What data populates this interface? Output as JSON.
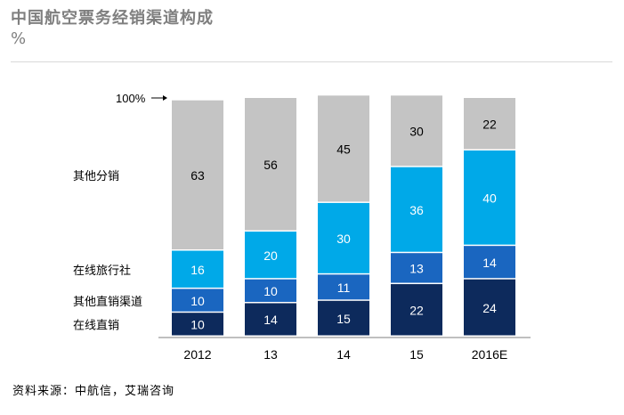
{
  "title": "中国航空票务经销渠道构成",
  "unit": "%",
  "source": "资料来源：中航信，艾瑞咨询",
  "chart_data": {
    "type": "bar",
    "stacked": true,
    "categories": [
      "2012",
      "13",
      "14",
      "15",
      "2016E"
    ],
    "series": [
      {
        "name": "在线直销",
        "color": "#0d2a5c",
        "values": [
          10,
          14,
          15,
          22,
          24
        ]
      },
      {
        "name": "其他直销渠道",
        "color": "#1a66c0",
        "values": [
          10,
          10,
          11,
          13,
          14
        ]
      },
      {
        "name": "在线旅行社",
        "color": "#00a9e8",
        "values": [
          16,
          20,
          30,
          36,
          40
        ]
      },
      {
        "name": "其他分销",
        "color": "#c4c4c4",
        "values": [
          63,
          56,
          45,
          30,
          22
        ]
      }
    ],
    "total_label": "100%",
    "ylim": [
      0,
      100
    ],
    "legend": "left"
  }
}
